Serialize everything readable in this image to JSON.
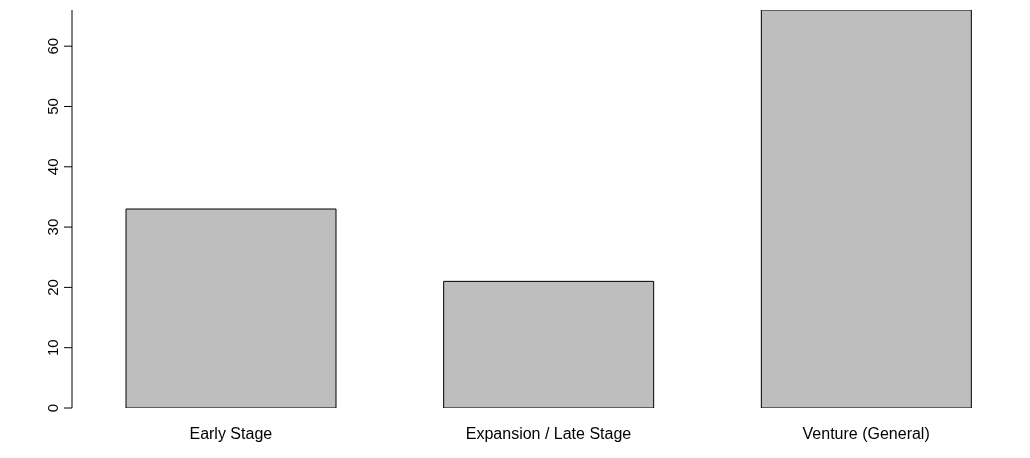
{
  "chart_data": {
    "type": "bar",
    "categories": [
      "Early Stage",
      "Expansion / Late Stage",
      "Venture (General)"
    ],
    "values": [
      33,
      21,
      66
    ],
    "color": "#bebebe",
    "ylim": [
      0,
      66
    ],
    "yticks": [
      0,
      10,
      20,
      30,
      40,
      50,
      60
    ],
    "grid": false
  }
}
